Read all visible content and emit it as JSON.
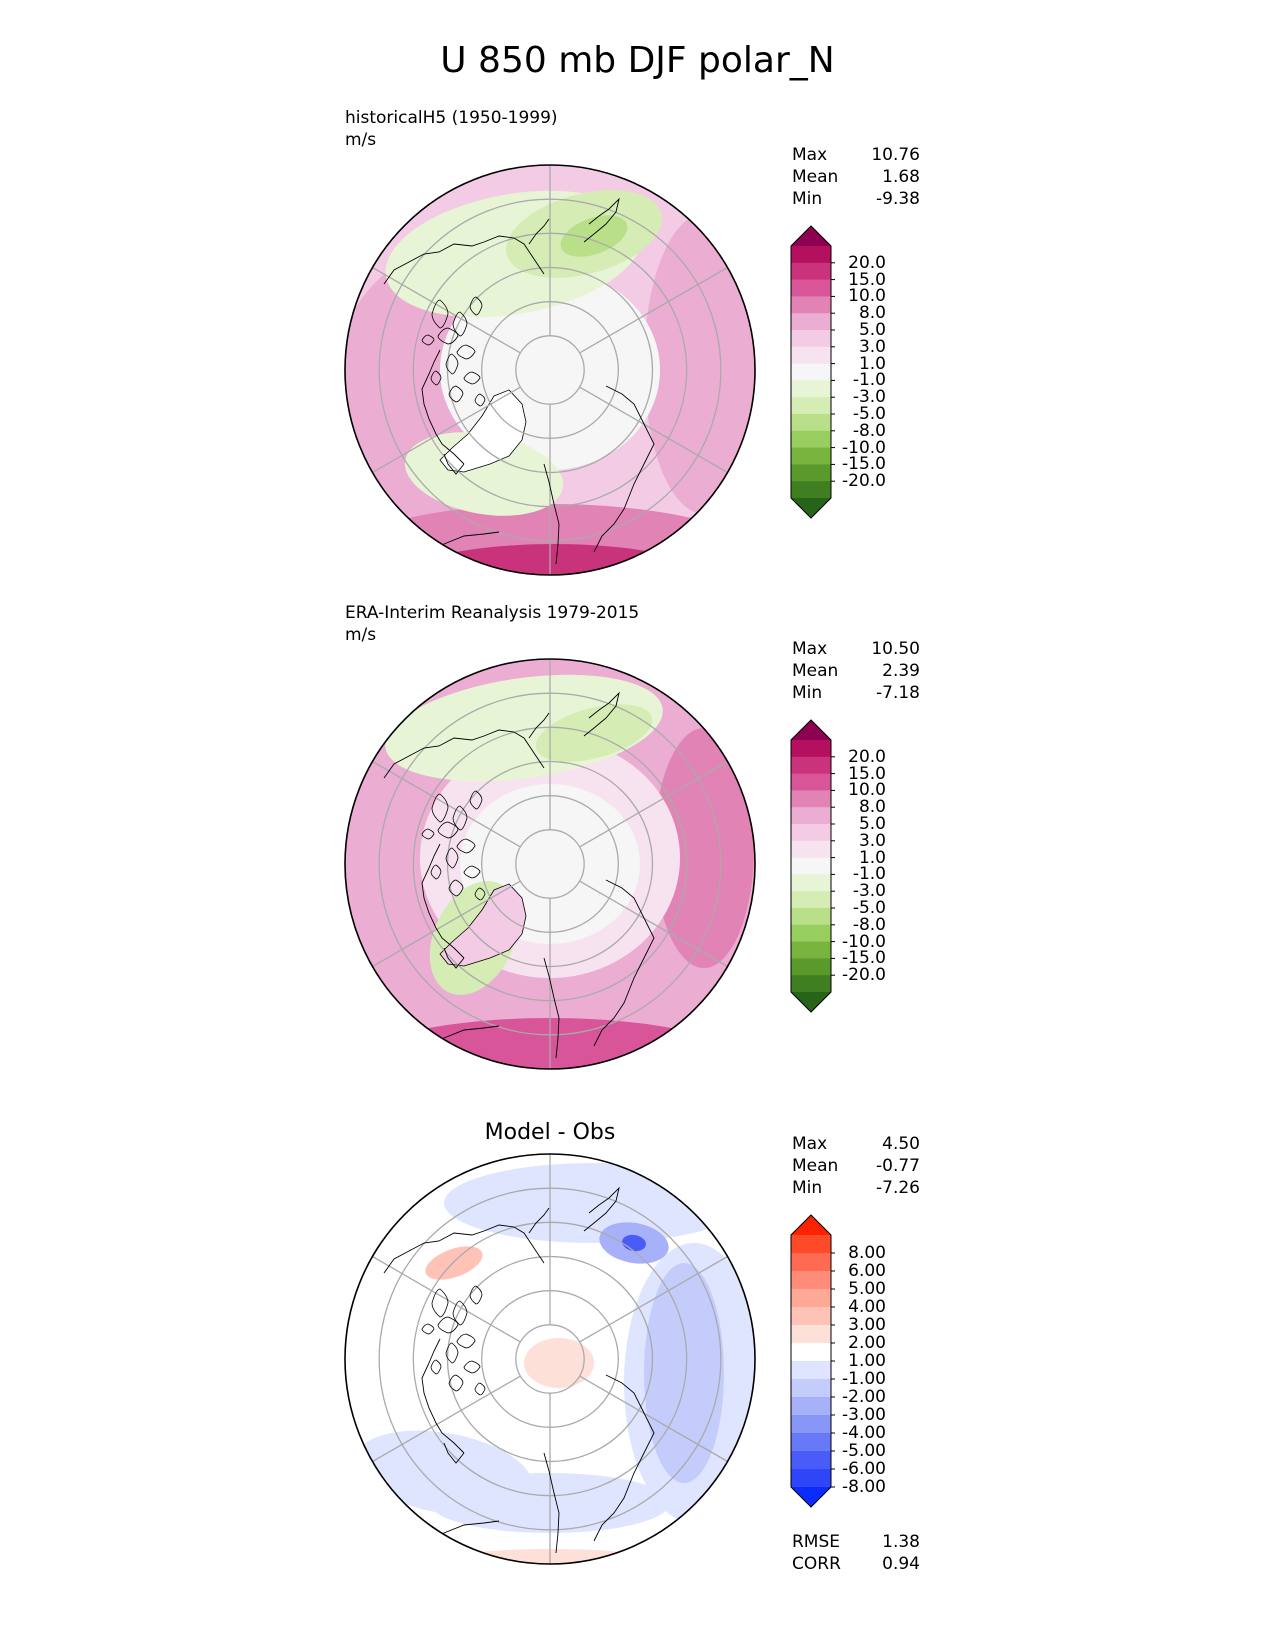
{
  "title": "U 850 mb DJF polar_N",
  "panels": [
    {
      "id": "model",
      "title_lines": [
        "historicalH5 (1950-1999)",
        "m/s"
      ],
      "stats": [
        {
          "label": "Max",
          "value": "10.76"
        },
        {
          "label": "Mean",
          "value": "1.68"
        },
        {
          "label": "Min",
          "value": "-9.38"
        }
      ],
      "colorbar": "wind"
    },
    {
      "id": "obs",
      "title_lines": [
        "ERA-Interim Reanalysis 1979-2015",
        "m/s"
      ],
      "stats": [
        {
          "label": "Max",
          "value": "10.50"
        },
        {
          "label": "Mean",
          "value": "2.39"
        },
        {
          "label": "Min",
          "value": "-7.18"
        }
      ],
      "colorbar": "wind"
    },
    {
      "id": "diff",
      "center_title": "Model - Obs",
      "stats": [
        {
          "label": "Max",
          "value": "4.50"
        },
        {
          "label": "Mean",
          "value": "-0.77"
        },
        {
          "label": "Min",
          "value": "-7.26"
        }
      ],
      "colorbar": "diff",
      "metrics": [
        {
          "label": "RMSE",
          "value": "1.38"
        },
        {
          "label": "CORR",
          "value": "0.94"
        }
      ]
    }
  ],
  "colorbars": {
    "wind": {
      "ticks": [
        "20.0",
        "15.0",
        "10.0",
        "8.0",
        "5.0",
        "3.0",
        "1.0",
        "-1.0",
        "-3.0",
        "-5.0",
        "-8.0",
        "-10.0",
        "-15.0",
        "-20.0"
      ],
      "colors": [
        "#8e0152",
        "#b5105f",
        "#c9337c",
        "#d8559a",
        "#e283b6",
        "#ebadd2",
        "#f3cbe4",
        "#f7e3ef",
        "#f6f6f6",
        "#e8f4d6",
        "#d5ecb5",
        "#b9e089",
        "#98cd5f",
        "#79b43f",
        "#5a9a2c",
        "#3f7f21",
        "#276419"
      ]
    },
    "diff": {
      "ticks": [
        "8.00",
        "6.00",
        "5.00",
        "4.00",
        "3.00",
        "2.00",
        "1.00",
        "-1.00",
        "-2.00",
        "-3.00",
        "-4.00",
        "-5.00",
        "-6.00",
        "-8.00"
      ],
      "colors": [
        "#ff2200",
        "#ff4a2a",
        "#ff6b52",
        "#ff8c78",
        "#fea996",
        "#fec3b6",
        "#fde0d8",
        "#ffffff",
        "#dfe4ff",
        "#c4ccfc",
        "#a6b1fa",
        "#8896f8",
        "#6779f7",
        "#4a5cf7",
        "#2e45f8",
        "#0b2cff"
      ]
    }
  }
}
